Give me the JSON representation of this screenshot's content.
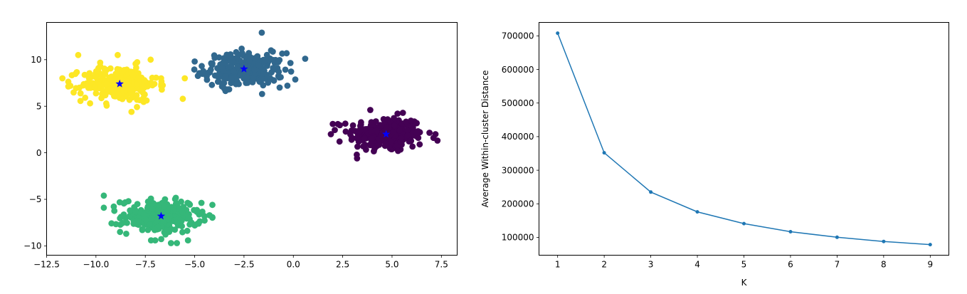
{
  "chart_data": [
    {
      "type": "scatter",
      "title": "",
      "xlabel": "",
      "ylabel": "",
      "xlim": [
        -12.5,
        8.3
      ],
      "ylim": [
        -11.0,
        14.0
      ],
      "grid": false,
      "x_ticks": [
        -12.5,
        -10.0,
        -7.5,
        -5.0,
        -2.5,
        0.0,
        2.5,
        5.0,
        7.5
      ],
      "x_tick_labels": [
        "−12.5",
        "−10.0",
        "−7.5",
        "−5.0",
        "−2.5",
        "0.0",
        "2.5",
        "5.0",
        "7.5"
      ],
      "y_ticks": [
        -10,
        -5,
        0,
        5,
        10
      ],
      "y_tick_labels": [
        "−10",
        "−5",
        "0",
        "5",
        "10"
      ],
      "clusters": [
        {
          "color": "#440154",
          "center": [
            4.7,
            2.0
          ],
          "spread": [
            0.95,
            0.95
          ],
          "count": 250,
          "outliers": [
            [
              2.0,
              3.1
            ],
            [
              1.9,
              2.0
            ],
            [
              7.2,
              2.0
            ],
            [
              7.1,
              1.6
            ],
            [
              3.9,
              4.6
            ],
            [
              6.4,
              0.9
            ]
          ]
        },
        {
          "color": "#31688e",
          "center": [
            -2.5,
            8.9
          ],
          "spread": [
            1.0,
            0.9
          ],
          "count": 250,
          "outliers": [
            [
              0.6,
              10.1
            ],
            [
              -1.6,
              12.9
            ],
            [
              -5.0,
              9.8
            ],
            [
              -0.3,
              7.2
            ],
            [
              -3.5,
              6.9
            ]
          ]
        },
        {
          "color": "#35b779",
          "center": [
            -6.7,
            -6.8
          ],
          "spread": [
            1.0,
            0.9
          ],
          "count": 250,
          "outliers": [
            [
              -9.6,
              -4.6
            ],
            [
              -9.6,
              -5.9
            ],
            [
              -6.2,
              -9.7
            ],
            [
              -5.9,
              -9.7
            ],
            [
              -7.0,
              -9.4
            ],
            [
              -4.5,
              -6.8
            ]
          ]
        },
        {
          "color": "#fde725",
          "center": [
            -8.8,
            7.4
          ],
          "spread": [
            0.95,
            0.95
          ],
          "count": 250,
          "outliers": [
            [
              -10.9,
              10.5
            ],
            [
              -8.9,
              10.5
            ],
            [
              -5.6,
              5.8
            ],
            [
              -5.5,
              8.0
            ],
            [
              -11.7,
              8.0
            ],
            [
              -8.2,
              4.4
            ]
          ]
        }
      ],
      "centroids": {
        "color": "#0000ff",
        "marker": "star",
        "points": [
          [
            4.7,
            2.0
          ],
          [
            -2.5,
            9.0
          ],
          [
            -6.7,
            -6.8
          ],
          [
            -8.8,
            7.4
          ]
        ]
      }
    },
    {
      "type": "line",
      "title": "",
      "xlabel": "K",
      "ylabel": "Average Within-cluster Distance",
      "x": [
        1,
        2,
        3,
        4,
        5,
        6,
        7,
        8,
        9
      ],
      "y": [
        708000,
        352000,
        235000,
        176000,
        141000,
        117000,
        100500,
        88000,
        78500
      ],
      "xlim": [
        0.6,
        9.4
      ],
      "ylim": [
        47000,
        740000
      ],
      "grid": false,
      "x_ticks": [
        1,
        2,
        3,
        4,
        5,
        6,
        7,
        8,
        9
      ],
      "x_tick_labels": [
        "1",
        "2",
        "3",
        "4",
        "5",
        "6",
        "7",
        "8",
        "9"
      ],
      "y_ticks": [
        100000,
        200000,
        300000,
        400000,
        500000,
        600000,
        700000
      ],
      "y_tick_labels": [
        "100000",
        "200000",
        "300000",
        "400000",
        "500000",
        "600000",
        "700000"
      ],
      "line_color": "#1f77b4",
      "marker": "point"
    }
  ]
}
